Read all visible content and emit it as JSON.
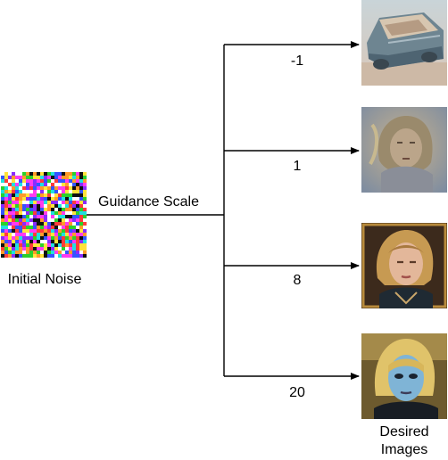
{
  "input": {
    "label": "Initial Noise",
    "description": "random color noise"
  },
  "process": {
    "label": "Guidance Scale"
  },
  "branches": [
    {
      "scale": "-1",
      "icon": "car-wreck-painting"
    },
    {
      "scale": "1",
      "icon": "blurry-portrait-painting"
    },
    {
      "scale": "8",
      "icon": "blonde-portrait-painting"
    },
    {
      "scale": "20",
      "icon": "blue-face-portrait-painting"
    }
  ],
  "output": {
    "label_line1": "Desired",
    "label_line2": "Images"
  },
  "colors": {
    "line": "#000000",
    "text": "#000000",
    "background": "#ffffff"
  }
}
